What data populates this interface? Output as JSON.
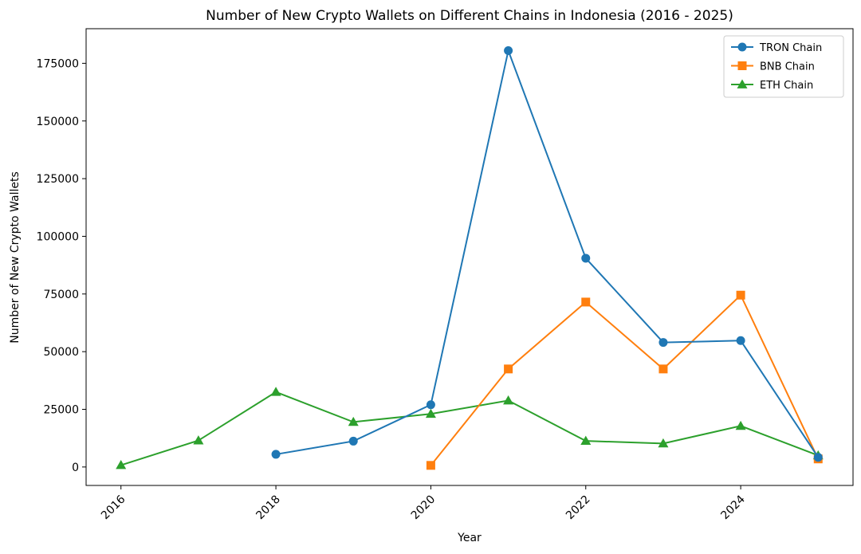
{
  "chart_data": {
    "type": "line",
    "title": "Number of New Crypto Wallets on Different Chains in Indonesia (2016 - 2025)",
    "xlabel": "Year",
    "ylabel": "Number of New Crypto Wallets",
    "xlim": [
      2015.55,
      2025.45
    ],
    "ylim": [
      -8000,
      190000
    ],
    "x_ticks": [
      2016,
      2018,
      2020,
      2022,
      2024
    ],
    "y_ticks": [
      0,
      25000,
      50000,
      75000,
      100000,
      125000,
      150000,
      175000
    ],
    "grid": false,
    "legend_position": "top-right",
    "series": [
      {
        "name": "TRON Chain",
        "color": "#1f77b4",
        "marker": "circle",
        "x": [
          2018,
          2019,
          2020,
          2021,
          2022,
          2023,
          2024,
          2025
        ],
        "values": [
          5500,
          11200,
          27000,
          180500,
          90500,
          54000,
          54800,
          4200
        ]
      },
      {
        "name": "BNB Chain",
        "color": "#ff7f0e",
        "marker": "square",
        "x": [
          2020,
          2021,
          2022,
          2023,
          2024,
          2025
        ],
        "values": [
          700,
          42500,
          71500,
          42500,
          74500,
          3500
        ]
      },
      {
        "name": "ETH Chain",
        "color": "#2ca02c",
        "marker": "triangle",
        "x": [
          2016,
          2017,
          2018,
          2019,
          2020,
          2021,
          2022,
          2023,
          2024,
          2025
        ],
        "values": [
          800,
          11500,
          32500,
          19500,
          23000,
          28800,
          11300,
          10200,
          17800,
          5000
        ]
      }
    ]
  }
}
